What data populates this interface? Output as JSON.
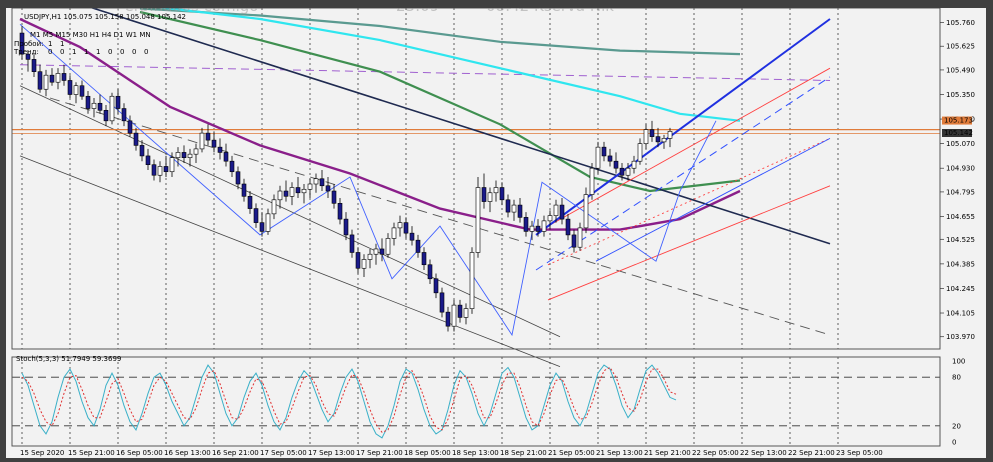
{
  "watermark": [
    "Perpinados comigo",
    "23:09",
    "08:42 Kserva Nik"
  ],
  "chart_data": {
    "type": "candlestick",
    "header": "USDJPY,H1  105.075 105.158 105.048 105.142",
    "timeframes": "M1 M5 M15 M30 H1 H4 D1 W1 MN",
    "side_rows": [
      {
        "label": "Пробой:",
        "values": [
          "1",
          "1"
        ]
      },
      {
        "label": "Тренд:",
        "values": [
          "0",
          "0",
          "1",
          "1",
          "1",
          "0",
          "0",
          "0",
          "0"
        ]
      }
    ],
    "price_axis": {
      "ylim": [
        103.9,
        105.82
      ],
      "ticks": [
        "105.760",
        "105.625",
        "105.490",
        "105.350",
        "105.210",
        "105.070",
        "104.930",
        "104.795",
        "104.655",
        "104.525",
        "104.385",
        "104.245",
        "104.105",
        "103.970"
      ],
      "current_price_labels": [
        "105.173",
        "105.142"
      ]
    },
    "time_axis": {
      "labels": [
        "15 Sep 2020",
        "15 Sep 21:00",
        "16 Sep 05:00",
        "16 Sep 13:00",
        "16 Sep 21:00",
        "17 Sep 05:00",
        "17 Sep 13:00",
        "17 Sep 21:00",
        "18 Sep 05:00",
        "18 Sep 13:00",
        "18 Sep 21:00",
        "21 Sep 05:00",
        "21 Sep 13:00",
        "21 Sep 21:00",
        "22 Sep 05:00",
        "22 Sep 13:00",
        "22 Sep 21:00",
        "23 Sep 05:00"
      ],
      "bars_per_label": 8
    },
    "candles": [
      {
        "o": 105.7,
        "h": 105.74,
        "l": 105.55,
        "c": 105.58
      },
      {
        "o": 105.58,
        "h": 105.6,
        "l": 105.48,
        "c": 105.55
      },
      {
        "o": 105.55,
        "h": 105.58,
        "l": 105.45,
        "c": 105.48
      },
      {
        "o": 105.48,
        "h": 105.52,
        "l": 105.36,
        "c": 105.38
      },
      {
        "o": 105.38,
        "h": 105.49,
        "l": 105.34,
        "c": 105.46
      },
      {
        "o": 105.46,
        "h": 105.5,
        "l": 105.4,
        "c": 105.42
      },
      {
        "o": 105.42,
        "h": 105.5,
        "l": 105.38,
        "c": 105.47
      },
      {
        "o": 105.47,
        "h": 105.52,
        "l": 105.4,
        "c": 105.43
      },
      {
        "o": 105.43,
        "h": 105.46,
        "l": 105.33,
        "c": 105.35
      },
      {
        "o": 105.35,
        "h": 105.42,
        "l": 105.3,
        "c": 105.4
      },
      {
        "o": 105.4,
        "h": 105.43,
        "l": 105.32,
        "c": 105.34
      },
      {
        "o": 105.34,
        "h": 105.37,
        "l": 105.24,
        "c": 105.27
      },
      {
        "o": 105.27,
        "h": 105.33,
        "l": 105.22,
        "c": 105.3
      },
      {
        "o": 105.3,
        "h": 105.35,
        "l": 105.24,
        "c": 105.26
      },
      {
        "o": 105.26,
        "h": 105.29,
        "l": 105.17,
        "c": 105.2
      },
      {
        "o": 105.2,
        "h": 105.36,
        "l": 105.18,
        "c": 105.34
      },
      {
        "o": 105.34,
        "h": 105.38,
        "l": 105.24,
        "c": 105.27
      },
      {
        "o": 105.27,
        "h": 105.3,
        "l": 105.17,
        "c": 105.2
      },
      {
        "o": 105.2,
        "h": 105.23,
        "l": 105.11,
        "c": 105.13
      },
      {
        "o": 105.13,
        "h": 105.16,
        "l": 105.03,
        "c": 105.06
      },
      {
        "o": 105.06,
        "h": 105.09,
        "l": 104.97,
        "c": 105.0
      },
      {
        "o": 105.0,
        "h": 105.04,
        "l": 104.92,
        "c": 104.95
      },
      {
        "o": 104.95,
        "h": 104.98,
        "l": 104.86,
        "c": 104.89
      },
      {
        "o": 104.89,
        "h": 104.97,
        "l": 104.85,
        "c": 104.94
      },
      {
        "o": 104.94,
        "h": 105.0,
        "l": 104.88,
        "c": 104.91
      },
      {
        "o": 104.91,
        "h": 105.02,
        "l": 104.88,
        "c": 104.99
      },
      {
        "o": 104.99,
        "h": 105.05,
        "l": 104.94,
        "c": 105.02
      },
      {
        "o": 105.02,
        "h": 105.06,
        "l": 104.96,
        "c": 104.99
      },
      {
        "o": 104.99,
        "h": 105.04,
        "l": 104.94,
        "c": 105.01
      },
      {
        "o": 105.01,
        "h": 105.07,
        "l": 104.96,
        "c": 105.04
      },
      {
        "o": 105.04,
        "h": 105.16,
        "l": 105.02,
        "c": 105.13
      },
      {
        "o": 105.13,
        "h": 105.18,
        "l": 105.06,
        "c": 105.09
      },
      {
        "o": 105.09,
        "h": 105.14,
        "l": 105.02,
        "c": 105.05
      },
      {
        "o": 105.05,
        "h": 105.1,
        "l": 104.98,
        "c": 105.02
      },
      {
        "o": 105.02,
        "h": 105.07,
        "l": 104.94,
        "c": 104.97
      },
      {
        "o": 104.97,
        "h": 105.0,
        "l": 104.88,
        "c": 104.91
      },
      {
        "o": 104.91,
        "h": 104.94,
        "l": 104.81,
        "c": 104.84
      },
      {
        "o": 104.84,
        "h": 104.87,
        "l": 104.74,
        "c": 104.77
      },
      {
        "o": 104.77,
        "h": 104.8,
        "l": 104.67,
        "c": 104.7
      },
      {
        "o": 104.7,
        "h": 104.73,
        "l": 104.59,
        "c": 104.62
      },
      {
        "o": 104.62,
        "h": 104.68,
        "l": 104.54,
        "c": 104.57
      },
      {
        "o": 104.57,
        "h": 104.7,
        "l": 104.55,
        "c": 104.67
      },
      {
        "o": 104.67,
        "h": 104.78,
        "l": 104.64,
        "c": 104.75
      },
      {
        "o": 104.75,
        "h": 104.83,
        "l": 104.7,
        "c": 104.8
      },
      {
        "o": 104.8,
        "h": 104.86,
        "l": 104.74,
        "c": 104.77
      },
      {
        "o": 104.77,
        "h": 104.85,
        "l": 104.72,
        "c": 104.82
      },
      {
        "o": 104.82,
        "h": 104.88,
        "l": 104.76,
        "c": 104.79
      },
      {
        "o": 104.79,
        "h": 104.84,
        "l": 104.73,
        "c": 104.81
      },
      {
        "o": 104.81,
        "h": 104.87,
        "l": 104.76,
        "c": 104.84
      },
      {
        "o": 104.84,
        "h": 104.9,
        "l": 104.79,
        "c": 104.87
      },
      {
        "o": 104.87,
        "h": 104.92,
        "l": 104.8,
        "c": 104.83
      },
      {
        "o": 104.83,
        "h": 104.88,
        "l": 104.76,
        "c": 104.8
      },
      {
        "o": 104.8,
        "h": 104.84,
        "l": 104.7,
        "c": 104.73
      },
      {
        "o": 104.73,
        "h": 104.76,
        "l": 104.61,
        "c": 104.64
      },
      {
        "o": 104.64,
        "h": 104.68,
        "l": 104.52,
        "c": 104.55
      },
      {
        "o": 104.55,
        "h": 104.58,
        "l": 104.42,
        "c": 104.45
      },
      {
        "o": 104.45,
        "h": 104.48,
        "l": 104.33,
        "c": 104.36
      },
      {
        "o": 104.36,
        "h": 104.44,
        "l": 104.31,
        "c": 104.41
      },
      {
        "o": 104.41,
        "h": 104.47,
        "l": 104.36,
        "c": 104.44
      },
      {
        "o": 104.44,
        "h": 104.5,
        "l": 104.38,
        "c": 104.47
      },
      {
        "o": 104.47,
        "h": 104.53,
        "l": 104.4,
        "c": 104.44
      },
      {
        "o": 104.44,
        "h": 104.56,
        "l": 104.42,
        "c": 104.53
      },
      {
        "o": 104.53,
        "h": 104.62,
        "l": 104.49,
        "c": 104.59
      },
      {
        "o": 104.59,
        "h": 104.66,
        "l": 104.54,
        "c": 104.62
      },
      {
        "o": 104.62,
        "h": 104.65,
        "l": 104.53,
        "c": 104.56
      },
      {
        "o": 104.56,
        "h": 104.6,
        "l": 104.49,
        "c": 104.52
      },
      {
        "o": 104.52,
        "h": 104.55,
        "l": 104.42,
        "c": 104.45
      },
      {
        "o": 104.45,
        "h": 104.48,
        "l": 104.35,
        "c": 104.38
      },
      {
        "o": 104.38,
        "h": 104.41,
        "l": 104.27,
        "c": 104.3
      },
      {
        "o": 104.3,
        "h": 104.33,
        "l": 104.19,
        "c": 104.22
      },
      {
        "o": 104.22,
        "h": 104.25,
        "l": 104.08,
        "c": 104.11
      },
      {
        "o": 104.11,
        "h": 104.14,
        "l": 104.0,
        "c": 104.03
      },
      {
        "o": 104.03,
        "h": 104.18,
        "l": 104.0,
        "c": 104.15
      },
      {
        "o": 104.15,
        "h": 104.18,
        "l": 104.05,
        "c": 104.08
      },
      {
        "o": 104.08,
        "h": 104.16,
        "l": 104.04,
        "c": 104.13
      },
      {
        "o": 104.13,
        "h": 104.48,
        "l": 104.1,
        "c": 104.45
      },
      {
        "o": 104.45,
        "h": 104.88,
        "l": 104.42,
        "c": 104.82
      },
      {
        "o": 104.82,
        "h": 104.9,
        "l": 104.7,
        "c": 104.74
      },
      {
        "o": 104.74,
        "h": 104.82,
        "l": 104.68,
        "c": 104.79
      },
      {
        "o": 104.79,
        "h": 104.86,
        "l": 104.74,
        "c": 104.82
      },
      {
        "o": 104.82,
        "h": 104.85,
        "l": 104.72,
        "c": 104.75
      },
      {
        "o": 104.75,
        "h": 104.78,
        "l": 104.65,
        "c": 104.68
      },
      {
        "o": 104.68,
        "h": 104.75,
        "l": 104.63,
        "c": 104.72
      },
      {
        "o": 104.72,
        "h": 104.76,
        "l": 104.62,
        "c": 104.65
      },
      {
        "o": 104.65,
        "h": 104.68,
        "l": 104.54,
        "c": 104.57
      },
      {
        "o": 104.57,
        "h": 104.63,
        "l": 104.52,
        "c": 104.6
      },
      {
        "o": 104.6,
        "h": 104.64,
        "l": 104.54,
        "c": 104.57
      },
      {
        "o": 104.57,
        "h": 104.66,
        "l": 104.54,
        "c": 104.63
      },
      {
        "o": 104.63,
        "h": 104.69,
        "l": 104.58,
        "c": 104.66
      },
      {
        "o": 104.66,
        "h": 104.75,
        "l": 104.62,
        "c": 104.72
      },
      {
        "o": 104.72,
        "h": 104.76,
        "l": 104.61,
        "c": 104.64
      },
      {
        "o": 104.64,
        "h": 104.67,
        "l": 104.52,
        "c": 104.55
      },
      {
        "o": 104.55,
        "h": 104.58,
        "l": 104.45,
        "c": 104.48
      },
      {
        "o": 104.48,
        "h": 104.62,
        "l": 104.46,
        "c": 104.59
      },
      {
        "o": 104.59,
        "h": 104.82,
        "l": 104.56,
        "c": 104.78
      },
      {
        "o": 104.78,
        "h": 104.96,
        "l": 104.75,
        "c": 104.93
      },
      {
        "o": 104.93,
        "h": 105.08,
        "l": 104.9,
        "c": 105.05
      },
      {
        "o": 105.05,
        "h": 105.08,
        "l": 104.97,
        "c": 105.0
      },
      {
        "o": 105.0,
        "h": 105.04,
        "l": 104.94,
        "c": 104.97
      },
      {
        "o": 104.97,
        "h": 105.02,
        "l": 104.9,
        "c": 104.93
      },
      {
        "o": 104.93,
        "h": 104.96,
        "l": 104.86,
        "c": 104.89
      },
      {
        "o": 104.89,
        "h": 104.96,
        "l": 104.86,
        "c": 104.93
      },
      {
        "o": 104.93,
        "h": 105.0,
        "l": 104.9,
        "c": 104.97
      },
      {
        "o": 104.97,
        "h": 105.1,
        "l": 104.95,
        "c": 105.07
      },
      {
        "o": 105.07,
        "h": 105.18,
        "l": 105.04,
        "c": 105.15
      },
      {
        "o": 105.15,
        "h": 105.2,
        "l": 105.08,
        "c": 105.11
      },
      {
        "o": 105.11,
        "h": 105.16,
        "l": 105.05,
        "c": 105.08
      },
      {
        "o": 105.08,
        "h": 105.12,
        "l": 105.04,
        "c": 105.1
      },
      {
        "o": 105.1,
        "h": 105.16,
        "l": 105.05,
        "c": 105.14
      }
    ],
    "indicators": {
      "ma_cyan": [
        [
          0,
          105.92
        ],
        [
          20,
          105.86
        ],
        [
          40,
          105.78
        ],
        [
          60,
          105.66
        ],
        [
          80,
          105.5
        ],
        [
          100,
          105.34
        ],
        [
          110,
          105.24
        ],
        [
          120,
          105.2
        ]
      ],
      "ma_teal": [
        [
          20,
          105.84
        ],
        [
          40,
          105.8
        ],
        [
          60,
          105.74
        ],
        [
          80,
          105.65
        ],
        [
          100,
          105.6
        ],
        [
          120,
          105.58
        ]
      ],
      "ma_green": [
        [
          20,
          105.82
        ],
        [
          40,
          105.66
        ],
        [
          60,
          105.48
        ],
        [
          80,
          105.18
        ],
        [
          95,
          104.88
        ],
        [
          105,
          104.8
        ],
        [
          120,
          104.86
        ]
      ],
      "ma_purple": [
        [
          0,
          105.78
        ],
        [
          10,
          105.62
        ],
        [
          25,
          105.28
        ],
        [
          40,
          105.06
        ],
        [
          55,
          104.9
        ],
        [
          70,
          104.7
        ],
        [
          85,
          104.58
        ],
        [
          100,
          104.58
        ],
        [
          110,
          104.64
        ],
        [
          120,
          104.8
        ]
      ],
      "level_orange": 105.15,
      "level_purple_dashed": [
        [
          0,
          105.52
        ],
        [
          135,
          105.43
        ]
      ],
      "trend_navy": [
        [
          5,
          105.92
        ],
        [
          135,
          104.5
        ]
      ],
      "channel_black_1": [
        [
          0,
          105.4
        ],
        [
          90,
          103.97
        ]
      ],
      "channel_black_2": [
        [
          0,
          105.0
        ],
        [
          90,
          103.8
        ]
      ],
      "channel_dashed": [
        [
          5,
          105.33
        ],
        [
          135,
          103.98
        ]
      ],
      "blue_channel_top": [
        [
          86,
          104.55
        ],
        [
          135,
          105.78
        ]
      ],
      "blue_channel_mid": [
        [
          86,
          104.35
        ],
        [
          135,
          105.45
        ]
      ],
      "red_channel_top": [
        [
          88,
          104.6
        ],
        [
          135,
          105.5
        ]
      ],
      "red_channel_bottom": [
        [
          88,
          104.18
        ],
        [
          135,
          104.83
        ]
      ],
      "red_dotted": [
        [
          88,
          104.38
        ],
        [
          135,
          105.1
        ]
      ],
      "blue_lower": [
        [
          96,
          104.4
        ],
        [
          135,
          105.1
        ]
      ],
      "zigzag": [
        [
          0,
          105.75
        ],
        [
          40,
          104.55
        ],
        [
          55,
          104.88
        ],
        [
          62,
          104.3
        ],
        [
          70,
          104.6
        ],
        [
          82,
          103.98
        ],
        [
          87,
          104.85
        ],
        [
          106,
          104.4
        ],
        [
          110,
          104.8
        ],
        [
          116,
          105.2
        ]
      ]
    },
    "stochastic": {
      "header": "Stoch(5,3,3) 51.7949 59.3699",
      "ylim": [
        0,
        100
      ],
      "ticks": [
        "100",
        "80",
        "20",
        "0"
      ],
      "levels": [
        80,
        20
      ],
      "main": [
        85,
        70,
        45,
        20,
        10,
        25,
        55,
        80,
        90,
        75,
        50,
        30,
        20,
        40,
        70,
        85,
        70,
        45,
        25,
        15,
        35,
        60,
        80,
        85,
        70,
        50,
        35,
        20,
        30,
        55,
        80,
        95,
        85,
        60,
        35,
        20,
        30,
        55,
        75,
        85,
        70,
        45,
        25,
        15,
        30,
        55,
        75,
        88,
        80,
        60,
        40,
        25,
        35,
        60,
        80,
        90,
        75,
        50,
        25,
        10,
        5,
        20,
        45,
        75,
        90,
        85,
        65,
        40,
        20,
        10,
        15,
        40,
        70,
        88,
        80,
        60,
        35,
        20,
        35,
        60,
        85,
        92,
        80,
        55,
        30,
        15,
        20,
        45,
        70,
        85,
        75,
        50,
        30,
        20,
        35,
        60,
        85,
        95,
        90,
        70,
        45,
        30,
        40,
        65,
        88,
        95,
        85,
        70,
        55,
        52
      ],
      "signal": [
        80,
        75,
        60,
        40,
        25,
        20,
        35,
        60,
        80,
        82,
        65,
        45,
        30,
        30,
        50,
        72,
        78,
        60,
        40,
        25,
        28,
        48,
        70,
        80,
        75,
        60,
        45,
        30,
        28,
        42,
        65,
        85,
        88,
        72,
        50,
        30,
        28,
        42,
        62,
        78,
        75,
        58,
        38,
        22,
        25,
        42,
        62,
        80,
        82,
        70,
        50,
        35,
        32,
        48,
        68,
        83,
        80,
        62,
        40,
        22,
        12,
        15,
        32,
        58,
        80,
        88,
        75,
        55,
        32,
        18,
        15,
        28,
        52,
        78,
        82,
        70,
        50,
        30,
        30,
        48,
        70,
        85,
        85,
        68,
        45,
        25,
        20,
        35,
        58,
        76,
        78,
        62,
        42,
        28,
        30,
        48,
        70,
        88,
        92,
        80,
        60,
        42,
        38,
        52,
        75,
        90,
        90,
        78,
        62,
        59
      ]
    }
  }
}
